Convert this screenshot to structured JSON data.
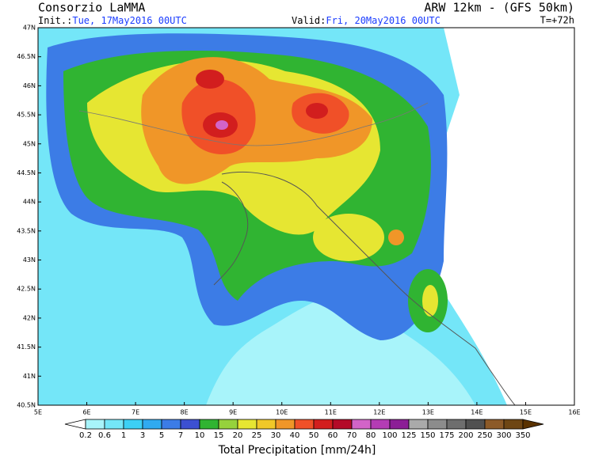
{
  "header": {
    "title": "Consorzio LaMMA",
    "model": "ARW 12km - (GFS 50km)",
    "init_label": "Init.:",
    "init_value": "Tue, 17May2016 00UTC",
    "valid_label": "Valid:",
    "valid_value": "Fri, 20May2016 00UTC",
    "lead_time": "T=+72h"
  },
  "map": {
    "lat_labels": [
      "47N",
      "46.5N",
      "46N",
      "45.5N",
      "45N",
      "44.5N",
      "44N",
      "43.5N",
      "43N",
      "42.5N",
      "42N",
      "41.5N",
      "41N",
      "40.5N"
    ],
    "lon_labels": [
      "5E",
      "6E",
      "7E",
      "8E",
      "9E",
      "10E",
      "11E",
      "12E",
      "13E",
      "14E",
      "15E",
      "16E"
    ]
  },
  "colorbar": {
    "levels": [
      "0.2",
      "0.6",
      "1",
      "3",
      "5",
      "7",
      "10",
      "15",
      "20",
      "25",
      "30",
      "40",
      "50",
      "60",
      "70",
      "80",
      "100",
      "125",
      "150",
      "175",
      "200",
      "250",
      "300",
      "350"
    ],
    "colors": [
      "#ffffff",
      "#a8f4fa",
      "#74e6f8",
      "#3cd0f5",
      "#30aaf0",
      "#3c7ce6",
      "#3c50d2",
      "#30b432",
      "#96d23c",
      "#e6e632",
      "#f0c828",
      "#f09628",
      "#f05028",
      "#d21e1e",
      "#b40a28",
      "#d264c8",
      "#b43cb4",
      "#8c1e96",
      "#aaaaaa",
      "#8c8c8c",
      "#6e6e6e",
      "#505050",
      "#8c5a28",
      "#6e4614",
      "#5a3200"
    ],
    "title": "Total Precipitation [mm/24h]"
  }
}
